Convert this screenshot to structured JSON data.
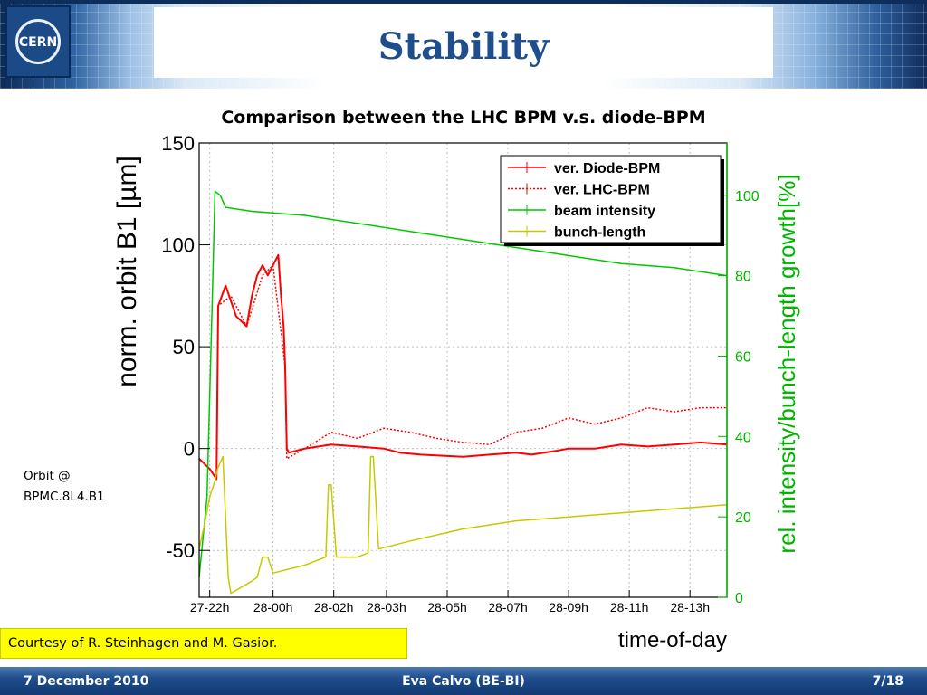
{
  "slide": {
    "title": "Stability",
    "logo_text": "CERN",
    "subtitle": "Comparison between the LHC BPM v.s. diode-BPM",
    "side_note_line1": "Orbit @",
    "side_note_line2": "BPMC.8L4.B1",
    "courtesy": "Courtesy of R. Steinhagen and M. Gasior.",
    "footer_left": "7 December 2010",
    "footer_center": "Eva Calvo (BE-BI)",
    "footer_right": "7/18"
  },
  "colors": {
    "header_blue": "#1f4e8c",
    "diode": "#ff0000",
    "lhc": "#ff0000",
    "intensity": "#00c800",
    "bunch": "#c8c800",
    "right_axis": "#00b400",
    "courtesy_bg": "#ffff00"
  },
  "chart_data": {
    "type": "line",
    "xlabel": "time-of-day",
    "ylabel": "norm. orbit B1 [µm]",
    "y2label": "rel. intensity/bunch-length growth[%]",
    "ylim": [
      -73,
      150
    ],
    "y2lim": [
      0,
      113
    ],
    "xlim": [
      0,
      100
    ],
    "x_ticks": [
      {
        "x": 2,
        "label": "27-22h"
      },
      {
        "x": 14,
        "label": "28-00h"
      },
      {
        "x": 25.5,
        "label": "28-02h"
      },
      {
        "x": 35.5,
        "label": "28-03h"
      },
      {
        "x": 47,
        "label": "28-05h"
      },
      {
        "x": 58.5,
        "label": "28-07h"
      },
      {
        "x": 70,
        "label": "28-09h"
      },
      {
        "x": 81.5,
        "label": "28-11h"
      },
      {
        "x": 93,
        "label": "28-13h"
      }
    ],
    "y_ticks": [
      -50,
      0,
      50,
      100,
      150
    ],
    "y2_ticks": [
      0,
      20,
      40,
      60,
      80,
      100
    ],
    "grid": true,
    "legend_position": "top-right",
    "series": [
      {
        "name": "ver. Diode-BPM",
        "axis": "left",
        "style": "solid",
        "x": [
          0,
          2,
          3.3,
          3.6,
          5,
          7,
          9,
          10,
          11,
          12,
          13,
          14,
          15,
          15.5,
          16,
          16.3,
          16.6,
          17,
          20,
          25,
          30,
          35,
          38,
          42,
          50,
          55,
          60,
          63,
          68,
          70,
          75,
          80,
          85,
          90,
          95,
          100
        ],
        "y": [
          -5,
          -10,
          -15,
          70,
          80,
          65,
          60,
          75,
          85,
          90,
          85,
          90,
          95,
          75,
          60,
          40,
          0,
          -2,
          0,
          2,
          1,
          0,
          -2,
          -3,
          -4,
          -3,
          -2,
          -3,
          -1,
          0,
          0,
          2,
          1,
          2,
          3,
          2
        ]
      },
      {
        "name": "ver. LHC-BPM",
        "axis": "left",
        "style": "dotted",
        "x": [
          0,
          2,
          3.3,
          3.6,
          6,
          9,
          12,
          14,
          16.3,
          16.6,
          20,
          25,
          30,
          35,
          40,
          45,
          50,
          55,
          60,
          65,
          70,
          75,
          80,
          85,
          90,
          95,
          100
        ],
        "y": [
          -5,
          -10,
          -15,
          70,
          75,
          60,
          85,
          90,
          40,
          -5,
          0,
          8,
          5,
          10,
          8,
          5,
          3,
          2,
          8,
          10,
          15,
          12,
          15,
          20,
          18,
          20,
          20
        ]
      },
      {
        "name": "beam intensity",
        "axis": "right",
        "style": "solid",
        "x": [
          0,
          1.5,
          2.5,
          3.0,
          4.0,
          5,
          10,
          20,
          30,
          40,
          50,
          60,
          70,
          80,
          90,
          100
        ],
        "y": [
          5,
          25,
          75,
          101,
          100,
          97,
          96,
          95,
          93,
          91,
          89,
          87,
          85,
          83,
          82,
          80
        ]
      },
      {
        "name": "bunch-length",
        "axis": "right",
        "style": "solid",
        "x": [
          0,
          1,
          2,
          3,
          3.5,
          4.5,
          5.5,
          6,
          10,
          11,
          12,
          13,
          14,
          20,
          24,
          24.5,
          25,
          26,
          30,
          32,
          32.5,
          33,
          34,
          40,
          50,
          60,
          70,
          80,
          90,
          100
        ],
        "y": [
          12,
          18,
          25,
          29,
          32,
          35,
          5,
          1,
          4,
          5,
          10,
          10,
          6,
          8,
          10,
          28,
          28,
          10,
          10,
          11,
          35,
          35,
          12,
          14,
          17,
          19,
          20,
          21,
          22,
          23
        ]
      }
    ]
  }
}
